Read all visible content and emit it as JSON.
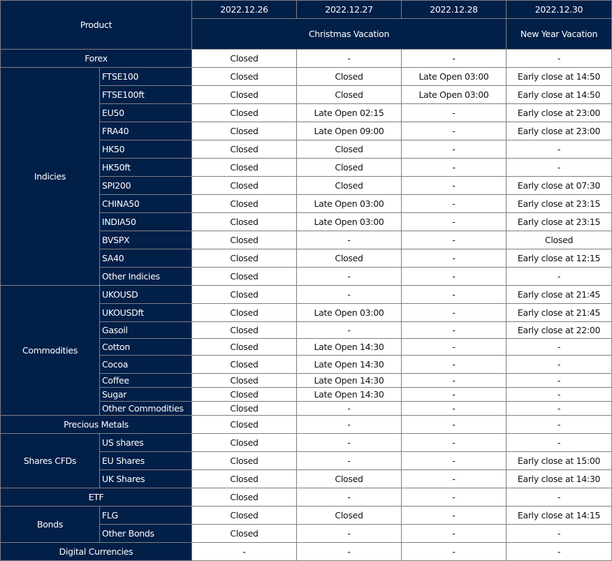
{
  "header": {
    "product_label": "Product",
    "dates": [
      "2022.12.26",
      "2022.12.27",
      "2022.12.28",
      "2022.12.30"
    ],
    "christmas_label": "Christmas Vacation",
    "new_year_label": "New Year Vacation"
  },
  "colors": {
    "header_bg": "#021f48",
    "header_text": "#ffffff",
    "border": "#7f7f7f"
  },
  "groups": [
    {
      "name": "Forex",
      "values": [
        "Closed",
        "-",
        "-",
        "-"
      ]
    },
    {
      "name": "Indicies",
      "items": [
        {
          "name": "FTSE100",
          "values": [
            "Closed",
            "Closed",
            "Late Open 03:00",
            "Early close at 14:50"
          ]
        },
        {
          "name": "FTSE100ft",
          "values": [
            "Closed",
            "Closed",
            "Late Open 03:00",
            "Early close at 14:50"
          ]
        },
        {
          "name": "EU50",
          "values": [
            "Closed",
            "Late Open 02:15",
            "-",
            "Early close at 23:00"
          ]
        },
        {
          "name": "FRA40",
          "values": [
            "Closed",
            "Late Open 09:00",
            "-",
            "Early close at 23:00"
          ]
        },
        {
          "name": "HK50",
          "values": [
            "Closed",
            "Closed",
            "-",
            "-"
          ]
        },
        {
          "name": "HK50ft",
          "values": [
            "Closed",
            "Closed",
            "-",
            "-"
          ]
        },
        {
          "name": "SPI200",
          "values": [
            "Closed",
            "Closed",
            "-",
            "Early close at 07:30"
          ]
        },
        {
          "name": "CHINA50",
          "values": [
            "Closed",
            "Late Open 03:00",
            "-",
            "Early close at 23:15"
          ]
        },
        {
          "name": "INDIA50",
          "values": [
            "Closed",
            "Late Open 03:00",
            "-",
            "Early close at 23:15"
          ]
        },
        {
          "name": "BVSPX",
          "values": [
            "Closed",
            "-",
            "-",
            "Closed"
          ]
        },
        {
          "name": "SA40",
          "values": [
            "Closed",
            "Closed",
            "-",
            "Early close at 12:15"
          ]
        },
        {
          "name": "Other Indicies",
          "values": [
            "Closed",
            "-",
            "-",
            "-"
          ]
        }
      ]
    },
    {
      "name": "Commodities",
      "items": [
        {
          "name": "UKOUSD",
          "values": [
            "Closed",
            "-",
            "-",
            "Early close at 21:45"
          ]
        },
        {
          "name": "UKOUSDft",
          "values": [
            "Closed",
            "Late Open 03:00",
            "-",
            "Early close at 21:45"
          ]
        },
        {
          "name": "Gasoil",
          "values": [
            "Closed",
            "-",
            "-",
            "Early close at 22:00"
          ]
        },
        {
          "name": "Cotton",
          "values": [
            "Closed",
            "Late Open 14:30",
            "-",
            "-"
          ]
        },
        {
          "name": "Cocoa",
          "values": [
            "Closed",
            "Late Open 14:30",
            "-",
            "-"
          ]
        },
        {
          "name": "Coffee",
          "values": [
            "Closed",
            "Late Open 14:30",
            "-",
            "-"
          ]
        },
        {
          "name": "Sugar",
          "values": [
            "Closed",
            "Late Open 14:30",
            "-",
            "-"
          ]
        },
        {
          "name": "Other Commodities",
          "values": [
            "Closed",
            "-",
            "-",
            "-"
          ]
        }
      ]
    },
    {
      "name": "Precious Metals",
      "values": [
        "Closed",
        "-",
        "-",
        "-"
      ]
    },
    {
      "name": "Shares CFDs",
      "items": [
        {
          "name": "US shares",
          "values": [
            "Closed",
            "-",
            "-",
            "-"
          ]
        },
        {
          "name": "EU Shares",
          "values": [
            "Closed",
            "-",
            "-",
            "Early close at 15:00"
          ]
        },
        {
          "name": "UK Shares",
          "values": [
            "Closed",
            "Closed",
            "-",
            "Early close at 14:30"
          ]
        }
      ]
    },
    {
      "name": "ETF",
      "values": [
        "Closed",
        "-",
        "-",
        "-"
      ]
    },
    {
      "name": "Bonds",
      "items": [
        {
          "name": "FLG",
          "values": [
            "Closed",
            "Closed",
            "-",
            "Early close at 14:15"
          ]
        },
        {
          "name": "Other Bonds",
          "values": [
            "Closed",
            "-",
            "-",
            "-"
          ]
        }
      ]
    },
    {
      "name": "Digital Currencies",
      "values": [
        "-",
        "-",
        "-",
        "-"
      ]
    }
  ]
}
